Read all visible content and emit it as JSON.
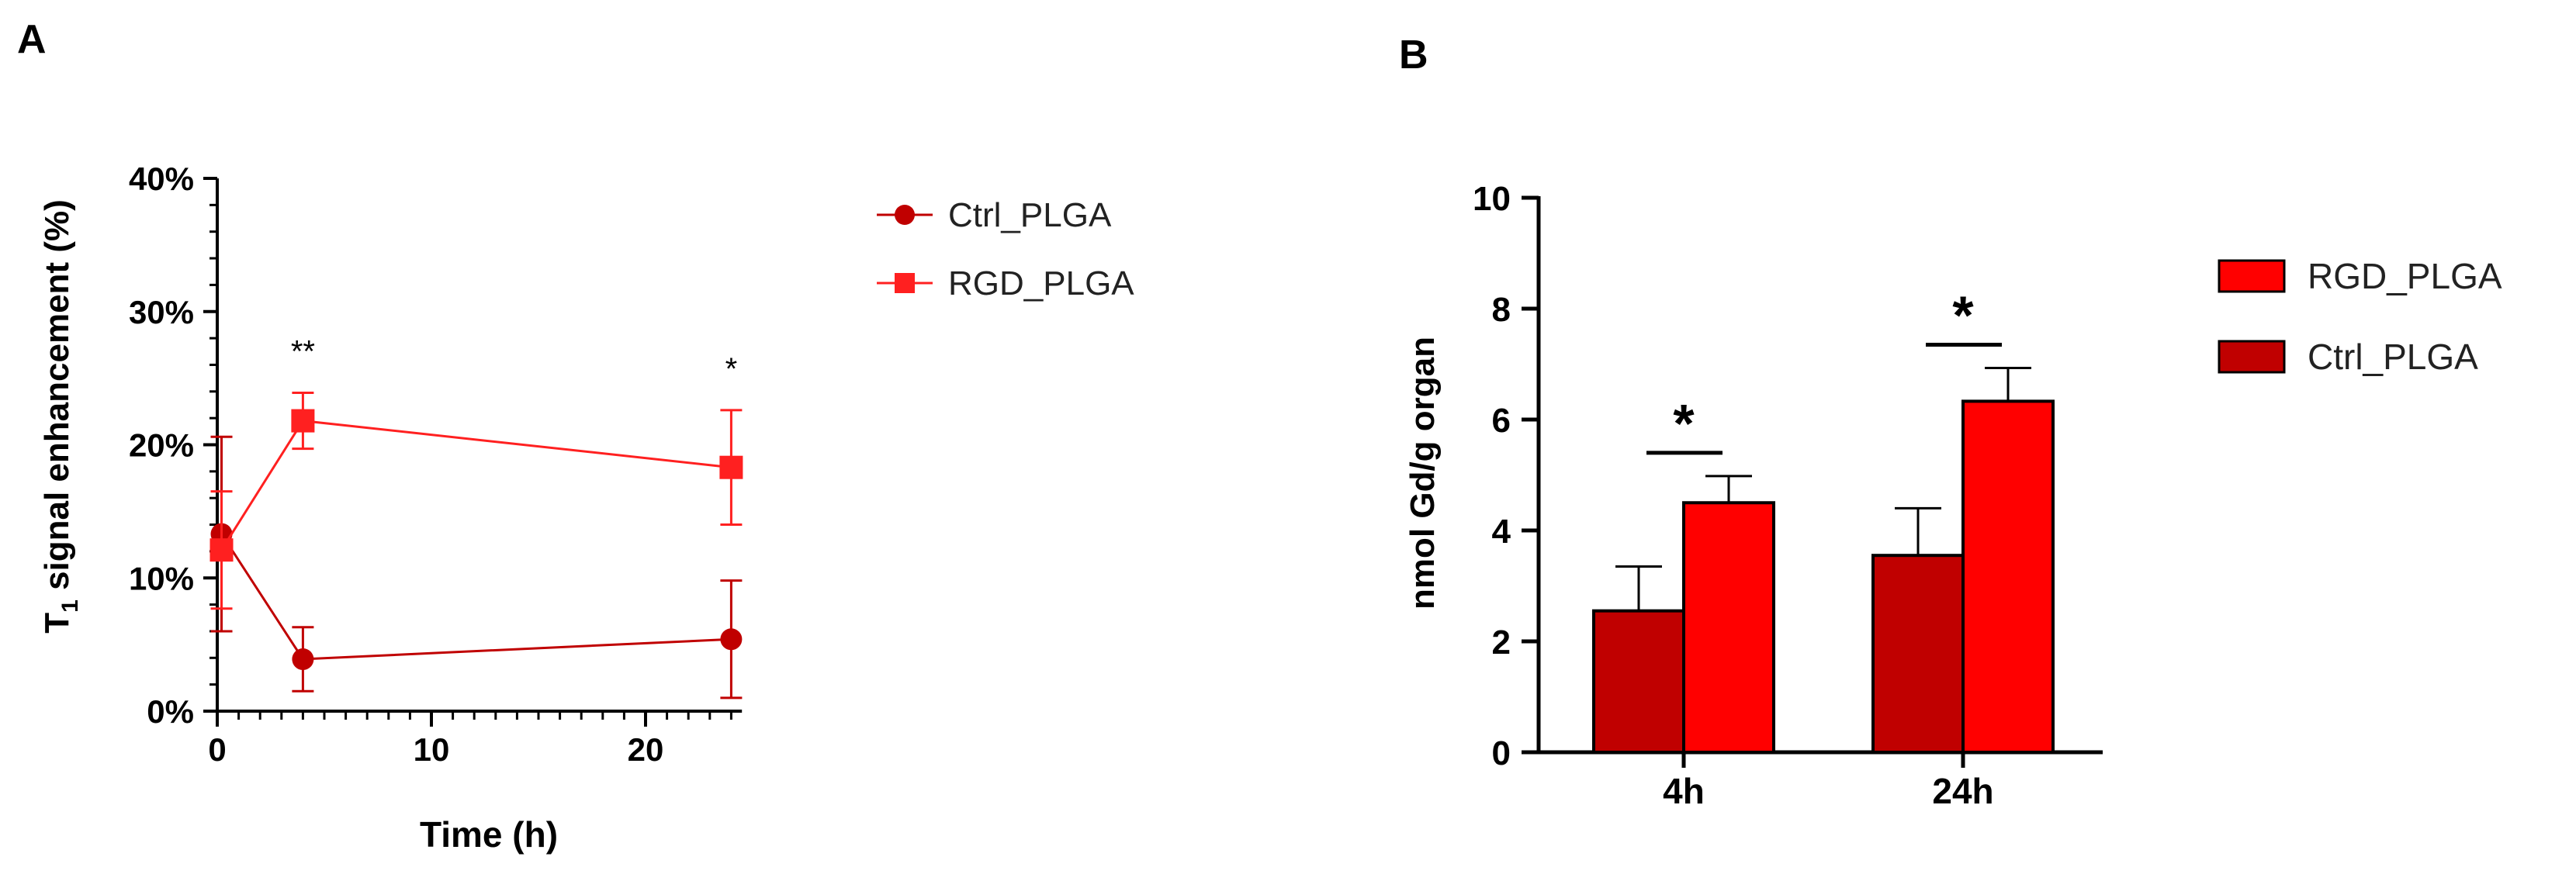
{
  "colors": {
    "ctrl_line": "#C00000",
    "rgd_line": "#FF2020",
    "ctrl_bar": "#C00000",
    "rgd_bar": "#FF0000",
    "axis": "#000000"
  },
  "chart_data": [
    {
      "panel_label": "A",
      "type": "line",
      "title": "",
      "xlabel": "Time (h)",
      "ylabel_main": "T",
      "ylabel_sub": "1",
      "ylabel_rest": " signal enhancement (%)",
      "xlim": [
        0,
        25
      ],
      "ylim": [
        0,
        40
      ],
      "x_ticks": [
        0,
        10,
        20
      ],
      "x_tick_labels": [
        "0",
        "10",
        "20"
      ],
      "y_ticks": [
        0,
        10,
        20,
        30,
        40
      ],
      "y_tick_labels": [
        "0%",
        "10%",
        "20%",
        "30%",
        "40%"
      ],
      "legend_position": "right",
      "series": [
        {
          "name": "Ctrl_PLGA",
          "marker": "circle",
          "x": [
            0.2,
            4,
            24
          ],
          "y": [
            13.3,
            3.9,
            5.4
          ],
          "err": [
            7.3,
            2.4,
            4.4
          ]
        },
        {
          "name": "RGD_PLGA",
          "marker": "square",
          "x": [
            0.2,
            4,
            24
          ],
          "y": [
            12.1,
            21.8,
            18.3
          ],
          "err": [
            4.4,
            2.1,
            4.3
          ]
        }
      ],
      "annotations": [
        {
          "text": "**",
          "x": 4
        },
        {
          "text": "*",
          "x": 24
        }
      ]
    },
    {
      "panel_label": "B",
      "type": "bar",
      "title": "",
      "xlabel": "",
      "ylabel": "nmol Gd/g organ",
      "categories": [
        "4h",
        "24h"
      ],
      "ylim": [
        0,
        10
      ],
      "y_ticks": [
        0,
        2,
        4,
        6,
        8,
        10
      ],
      "y_tick_labels": [
        "0",
        "2",
        "4",
        "6",
        "8",
        "10"
      ],
      "legend_position": "right",
      "legend_order": [
        "RGD_PLGA",
        "Ctrl_PLGA"
      ],
      "series": [
        {
          "name": "Ctrl_PLGA",
          "values": [
            2.55,
            3.55
          ],
          "err": [
            0.8,
            0.85
          ]
        },
        {
          "name": "RGD_PLGA",
          "values": [
            4.5,
            6.33
          ],
          "err": [
            0.48,
            0.6
          ]
        }
      ],
      "annotations": [
        {
          "text": "*",
          "category": "4h"
        },
        {
          "text": "*",
          "category": "24h"
        }
      ]
    }
  ]
}
